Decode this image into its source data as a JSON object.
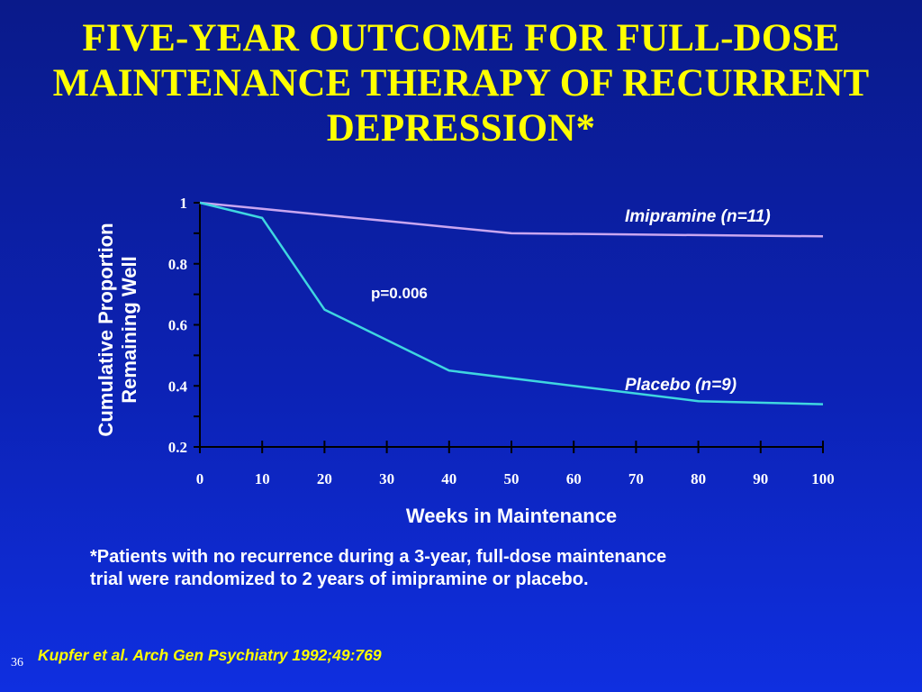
{
  "title_lines": [
    "FIVE-YEAR OUTCOME FOR FULL-DOSE",
    "MAINTENANCE THERAPY OF RECURRENT",
    "DEPRESSION*"
  ],
  "colors": {
    "title": "#ffff00",
    "text": "#ffffff",
    "imipramine_line": "#c9a6f0",
    "placebo_line": "#3fd6e0",
    "citation": "#ffff00"
  },
  "chart_data": {
    "type": "line",
    "xlabel": "Weeks in Maintenance",
    "ylabel_lines": [
      "Cumulative Proportion",
      "Remaining Well"
    ],
    "xlim": [
      0,
      100
    ],
    "ylim": [
      0.2,
      1
    ],
    "xticks": [
      0,
      10,
      20,
      30,
      40,
      50,
      60,
      70,
      80,
      90,
      100
    ],
    "yticks": [
      0.2,
      0.4,
      0.6,
      0.8,
      1
    ],
    "ytick_labels": [
      "0.2",
      "0.4",
      "0.6",
      "0.8",
      "1"
    ],
    "grid": false,
    "series": [
      {
        "name": "Imipramine (n=11)",
        "color": "#c9a6f0",
        "points": [
          [
            0,
            1.0
          ],
          [
            10,
            0.98
          ],
          [
            20,
            0.96
          ],
          [
            30,
            0.94
          ],
          [
            40,
            0.92
          ],
          [
            50,
            0.9
          ],
          [
            100,
            0.89
          ]
        ]
      },
      {
        "name": "Placebo (n=9)",
        "color": "#3fd6e0",
        "points": [
          [
            0,
            1.0
          ],
          [
            10,
            0.95
          ],
          [
            20,
            0.65
          ],
          [
            30,
            0.55
          ],
          [
            40,
            0.45
          ],
          [
            60,
            0.4
          ],
          [
            80,
            0.35
          ],
          [
            100,
            0.34
          ]
        ]
      }
    ],
    "annotation": "p=0.006"
  },
  "footnote_lines": [
    "*Patients with no recurrence during a 3-year, full-dose maintenance",
    "trial were randomized to 2 years of imipramine or placebo."
  ],
  "slide_number": "36",
  "citation": "Kupfer et al.  Arch Gen Psychiatry 1992;49:769"
}
